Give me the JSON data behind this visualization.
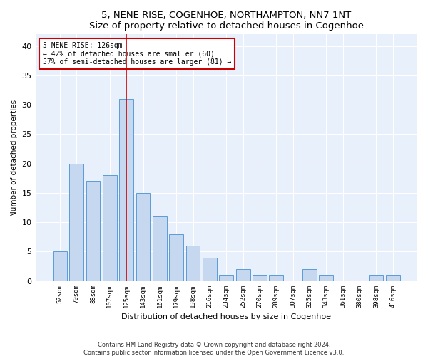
{
  "title1": "5, NENE RISE, COGENHOE, NORTHAMPTON, NN7 1NT",
  "title2": "Size of property relative to detached houses in Cogenhoe",
  "xlabel": "Distribution of detached houses by size in Cogenhoe",
  "ylabel": "Number of detached properties",
  "categories": [
    "52sqm",
    "70sqm",
    "88sqm",
    "107sqm",
    "125sqm",
    "143sqm",
    "161sqm",
    "179sqm",
    "198sqm",
    "216sqm",
    "234sqm",
    "252sqm",
    "270sqm",
    "289sqm",
    "307sqm",
    "325sqm",
    "343sqm",
    "361sqm",
    "380sqm",
    "398sqm",
    "416sqm"
  ],
  "values": [
    5,
    20,
    17,
    18,
    31,
    15,
    11,
    8,
    6,
    4,
    1,
    2,
    1,
    1,
    0,
    2,
    1,
    0,
    0,
    1,
    1
  ],
  "bar_color": "#c5d8f0",
  "bar_edge_color": "#5b9bd5",
  "highlight_index": 4,
  "annotation_title": "5 NENE RISE: 126sqm",
  "annotation_line1": "← 42% of detached houses are smaller (60)",
  "annotation_line2": "57% of semi-detached houses are larger (81) →",
  "annotation_box_color": "#cc0000",
  "ylim": [
    0,
    42
  ],
  "yticks": [
    0,
    5,
    10,
    15,
    20,
    25,
    30,
    35,
    40
  ],
  "footer1": "Contains HM Land Registry data © Crown copyright and database right 2024.",
  "footer2": "Contains public sector information licensed under the Open Government Licence v3.0.",
  "plot_bg_color": "#e8f0fb"
}
